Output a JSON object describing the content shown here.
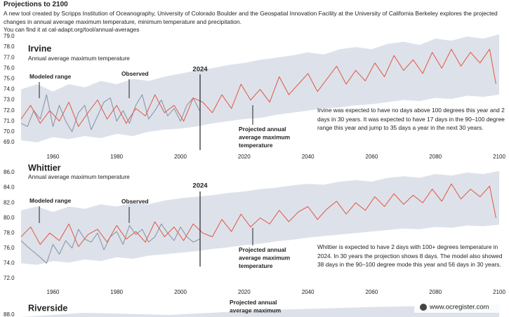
{
  "header": {
    "title": "Projections to 2100",
    "intro": "A new tool created by Scripps Institution of Oceanography, University of Colorado Boulder and the Geospatial Innovation Facility at the University of California Berkeley explores the projected changes in annual average maximum temperature, minimum temperature and precipitation.",
    "link": "You can find it at cal-adapt.org/tool/annual-averages"
  },
  "chart_data": [
    {
      "type": "line",
      "title": "Irvine",
      "subtitle": "Annual average maximum temperature",
      "marker": "2024",
      "note": "Irvine was expected to have no days above 100 degrees this year and 2 days in 30 years. It was expected to have 17 days in the 90–100 degree range this year and jump to 35 days a year in the next 30 years.",
      "xlim": [
        1950,
        2100
      ],
      "xticks": [
        1960,
        1980,
        2000,
        2020,
        2040,
        2060,
        2080,
        2100
      ],
      "ylim": [
        69,
        79
      ],
      "yticks": [
        {
          "value": 69,
          "label": "69.0"
        },
        {
          "value": 70,
          "label": "70.0"
        },
        {
          "value": 71,
          "label": "71.0"
        },
        {
          "value": 72,
          "label": "72.0"
        },
        {
          "value": 73,
          "label": "73.0"
        },
        {
          "value": 74,
          "label": "74.0"
        },
        {
          "value": 75,
          "label": "75.0"
        },
        {
          "value": 76,
          "label": "76.0"
        },
        {
          "value": 77,
          "label": "77.0"
        },
        {
          "value": 78,
          "label": "78.0"
        },
        {
          "value": 79,
          "label": "79.0"
        }
      ],
      "grid": false,
      "series": [
        {
          "name": "Modeled range",
          "color": "#dde2ea",
          "x": [
            1950,
            1955,
            1960,
            1965,
            1970,
            1975,
            1980,
            1985,
            1990,
            1995,
            2000,
            2005,
            2010,
            2015,
            2020,
            2025,
            2030,
            2035,
            2040,
            2045,
            2050,
            2055,
            2060,
            2065,
            2070,
            2075,
            2080,
            2085,
            2090,
            2095,
            2100
          ],
          "upper": [
            74.0,
            74.5,
            73.8,
            74.5,
            74.2,
            74.8,
            74.5,
            75.0,
            74.8,
            75.2,
            75.5,
            75.8,
            76.0,
            76.3,
            76.5,
            76.8,
            77.0,
            77.2,
            77.5,
            77.3,
            77.8,
            78.0,
            77.8,
            78.3,
            78.5,
            78.2,
            78.8,
            78.6,
            79.0,
            78.8,
            79.2
          ],
          "lower": [
            69.2,
            69.0,
            69.5,
            69.3,
            69.6,
            69.4,
            69.8,
            69.6,
            70.0,
            70.2,
            70.3,
            70.5,
            70.8,
            71.0,
            71.2,
            71.3,
            71.6,
            71.8,
            72.0,
            72.2,
            72.3,
            72.5,
            72.6,
            72.8,
            73.0,
            72.9,
            73.2,
            73.1,
            73.4,
            73.3,
            73.5
          ]
        },
        {
          "name": "Observed",
          "color": "#8d96a8",
          "x": [
            1950,
            1952,
            1954,
            1956,
            1958,
            1960,
            1962,
            1964,
            1966,
            1968,
            1970,
            1972,
            1974,
            1976,
            1978,
            1980,
            1982,
            1984,
            1986,
            1988,
            1990,
            1992,
            1994,
            1996,
            1998,
            2000,
            2002,
            2004,
            2006
          ],
          "values": [
            70.8,
            70.5,
            72.0,
            71.2,
            73.5,
            70.5,
            72.5,
            71.0,
            70.0,
            71.8,
            72.5,
            70.2,
            71.5,
            72.8,
            73.2,
            71.0,
            72.0,
            70.8,
            72.5,
            73.5,
            71.2,
            72.0,
            73.0,
            71.5,
            72.2,
            71.0,
            72.5,
            73.2,
            72.0
          ]
        },
        {
          "name": "Projected annual average maximum temperature",
          "color": "#e3604f",
          "x": [
            1950,
            1953,
            1956,
            1959,
            1962,
            1965,
            1968,
            1971,
            1974,
            1977,
            1980,
            1983,
            1986,
            1989,
            1992,
            1995,
            1998,
            2001,
            2004,
            2007,
            2010,
            2013,
            2016,
            2019,
            2022,
            2025,
            2028,
            2031,
            2034,
            2037,
            2040,
            2043,
            2046,
            2049,
            2052,
            2055,
            2058,
            2061,
            2064,
            2067,
            2070,
            2073,
            2076,
            2079,
            2082,
            2085,
            2088,
            2091,
            2094,
            2097,
            2099
          ],
          "values": [
            71.2,
            72.5,
            70.8,
            72.0,
            71.0,
            72.8,
            70.5,
            71.8,
            73.0,
            71.2,
            72.5,
            70.8,
            72.2,
            71.5,
            73.5,
            71.8,
            72.5,
            71.0,
            73.2,
            72.8,
            71.8,
            73.5,
            72.2,
            74.5,
            73.0,
            74.0,
            72.8,
            75.2,
            73.5,
            74.5,
            75.5,
            73.8,
            75.0,
            76.2,
            74.5,
            75.8,
            74.8,
            76.5,
            75.2,
            77.2,
            75.8,
            76.8,
            75.5,
            77.5,
            76.0,
            77.8,
            76.2,
            77.5,
            76.5,
            77.8,
            74.5
          ]
        }
      ]
    },
    {
      "type": "line",
      "title": "Whittier",
      "subtitle": "Annual average maximum temperature",
      "marker": "2024",
      "note": "Whittier is expected to have 2 days with 100+ degrees temperature in 2024. In 30 years the projection shows 8 days. The model also showed 38 days in the 90–100 degree mode this year and 56 days in 30 years.",
      "xlim": [
        1950,
        2100
      ],
      "xticks": [
        1960,
        1980,
        2000,
        2020,
        2040,
        2060,
        2080,
        2100
      ],
      "ylim": [
        72,
        86
      ],
      "yticks": [
        {
          "value": 72,
          "label": "72.0"
        },
        {
          "value": 74,
          "label": "74.0"
        },
        {
          "value": 76,
          "label": "76.0"
        },
        {
          "value": 78,
          "label": "78.0"
        },
        {
          "value": 80,
          "label": "80.0"
        },
        {
          "value": 82,
          "label": "82.0"
        },
        {
          "value": 84,
          "label": "84.0"
        },
        {
          "value": 86,
          "label": "86.0"
        }
      ],
      "grid": false,
      "series": [
        {
          "name": "Modeled range",
          "color": "#dde2ea",
          "x": [
            1950,
            1955,
            1960,
            1965,
            1970,
            1975,
            1980,
            1985,
            1990,
            1995,
            2000,
            2005,
            2010,
            2015,
            2020,
            2025,
            2030,
            2035,
            2040,
            2045,
            2050,
            2055,
            2060,
            2065,
            2070,
            2075,
            2080,
            2085,
            2090,
            2095,
            2100
          ],
          "upper": [
            81.0,
            81.5,
            80.8,
            81.5,
            81.2,
            81.8,
            81.5,
            82.0,
            81.8,
            82.3,
            82.6,
            82.8,
            83.0,
            83.3,
            83.5,
            83.8,
            84.0,
            84.3,
            84.5,
            84.4,
            84.8,
            85.0,
            84.8,
            85.3,
            85.5,
            85.3,
            85.8,
            85.6,
            86.0,
            85.8,
            86.2
          ],
          "lower": [
            74.0,
            73.8,
            74.3,
            74.1,
            74.5,
            74.3,
            74.8,
            74.6,
            75.0,
            75.2,
            75.4,
            75.6,
            75.9,
            76.1,
            76.4,
            76.6,
            76.9,
            77.1,
            77.4,
            77.6,
            77.8,
            78.0,
            78.2,
            78.4,
            78.6,
            78.5,
            78.8,
            78.7,
            79.0,
            78.9,
            79.1
          ]
        },
        {
          "name": "Observed",
          "color": "#8d96a8",
          "x": [
            1950,
            1952,
            1954,
            1956,
            1958,
            1960,
            1962,
            1964,
            1966,
            1968,
            1970,
            1972,
            1974,
            1976,
            1978,
            1980,
            1982,
            1984,
            1986,
            1988,
            1990,
            1992,
            1994,
            1996,
            1998,
            2000,
            2002,
            2004,
            2006
          ],
          "values": [
            77.0,
            76.2,
            75.5,
            74.8,
            74.0,
            76.5,
            75.2,
            77.0,
            76.0,
            78.5,
            77.2,
            76.8,
            78.0,
            75.8,
            77.5,
            78.2,
            76.5,
            79.0,
            77.8,
            78.5,
            76.8,
            77.5,
            79.2,
            78.0,
            77.0,
            78.8,
            77.5,
            76.8,
            77.2
          ]
        },
        {
          "name": "Projected annual average maximum temperature",
          "color": "#e3604f",
          "x": [
            1950,
            1953,
            1956,
            1959,
            1962,
            1965,
            1968,
            1971,
            1974,
            1977,
            1980,
            1983,
            1986,
            1989,
            1992,
            1995,
            1998,
            2001,
            2004,
            2007,
            2010,
            2013,
            2016,
            2019,
            2022,
            2025,
            2028,
            2031,
            2034,
            2037,
            2040,
            2043,
            2046,
            2049,
            2052,
            2055,
            2058,
            2061,
            2064,
            2067,
            2070,
            2073,
            2076,
            2079,
            2082,
            2085,
            2088,
            2091,
            2094,
            2097,
            2099
          ],
          "values": [
            77.5,
            78.8,
            76.5,
            78.0,
            77.0,
            79.2,
            76.2,
            77.8,
            78.5,
            76.8,
            79.0,
            77.2,
            78.2,
            76.8,
            79.5,
            77.5,
            78.8,
            77.0,
            79.2,
            78.0,
            77.5,
            79.8,
            78.2,
            80.5,
            78.8,
            80.0,
            79.2,
            81.0,
            79.5,
            80.8,
            81.5,
            79.8,
            81.2,
            82.2,
            80.5,
            82.0,
            81.0,
            82.8,
            81.5,
            83.2,
            81.8,
            83.0,
            82.0,
            83.8,
            82.2,
            84.5,
            82.5,
            83.8,
            82.8,
            84.2,
            80.0
          ]
        }
      ]
    }
  ],
  "riverside": {
    "title": "Riverside",
    "tick": "88.0",
    "label": "Projected annual average maximum"
  },
  "credit": "www.ocregister.com"
}
